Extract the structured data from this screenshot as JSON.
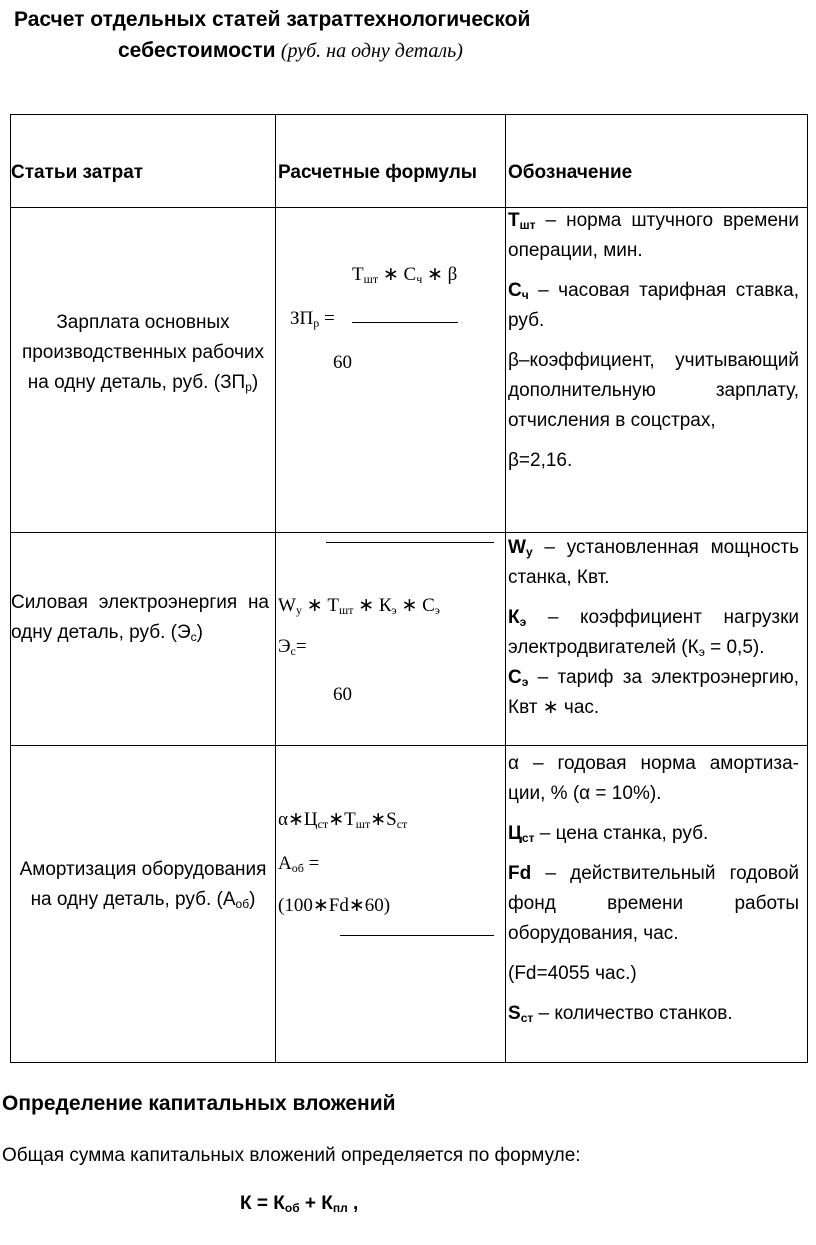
{
  "title": {
    "line1": "Расчет отдельных статей затраттехнологической",
    "line2_bold": "себестоимости",
    "line2_italic": "(руб. на одну деталь)"
  },
  "table": {
    "headers": [
      "Статьи затрат",
      "Расчетные формулы",
      "Обозначение"
    ],
    "rows": [
      {
        "item": [
          {
            "t": "Зарплата основных производственных рабочих на одну деталь, руб. (ЗП"
          },
          {
            "t": "р",
            "s": "sub"
          },
          {
            "t": ")"
          }
        ],
        "formula": {
          "numerator": [
            {
              "t": "Т"
            },
            {
              "t": "шт",
              "s": "sub"
            },
            {
              "t": " ∗ С"
            },
            {
              "t": "ч",
              "s": "sub"
            },
            {
              "t": " ∗ β"
            }
          ],
          "lhs": [
            {
              "t": "ЗП"
            },
            {
              "t": "р",
              "s": "sub"
            },
            {
              "t": " = "
            }
          ],
          "denominator": "60"
        },
        "desc": [
          [
            {
              "t": "Т",
              "s": "b"
            },
            {
              "t": "шт",
              "s": "bsub"
            },
            {
              "t": " – норма штучного времени операции, мин."
            }
          ],
          [
            {
              "t": "С",
              "s": "b"
            },
            {
              "t": "ч",
              "s": "bsub"
            },
            {
              "t": " – часовая тарифная ставка, руб."
            }
          ],
          [
            {
              "t": "β–коэффициент, учитывающий дополнительную зарплату, отчисления в соцстрах,"
            }
          ],
          [
            {
              "t": "β=2,16."
            }
          ]
        ]
      },
      {
        "item": [
          {
            "t": "Силовая электроэнергия на одну деталь, руб. (Э"
          },
          {
            "t": "с",
            "s": "sub"
          },
          {
            "t": ")"
          }
        ],
        "formula": {
          "numerator": [
            {
              "t": "W"
            },
            {
              "t": "у",
              "s": "sub"
            },
            {
              "t": " ∗ Т"
            },
            {
              "t": "шт",
              "s": "sub"
            },
            {
              "t": " ∗ К"
            },
            {
              "t": "э",
              "s": "sub"
            },
            {
              "t": " ∗ С"
            },
            {
              "t": "э",
              "s": "sub"
            }
          ],
          "lhs": [
            {
              "t": "Э"
            },
            {
              "t": "с",
              "s": "sub"
            },
            {
              "t": "="
            }
          ],
          "denominator": "60"
        },
        "desc": [
          [
            {
              "t": "W",
              "s": "b"
            },
            {
              "t": "у",
              "s": "bsub"
            },
            {
              "t": " – установленная мощность станка, Квт."
            }
          ],
          [
            {
              "t": "К",
              "s": "b"
            },
            {
              "t": "э",
              "s": "bsub"
            },
            {
              "t": " – коэффициент нагрузки электродвигателей (К"
            },
            {
              "t": "э",
              "s": "sub"
            },
            {
              "t": " = 0,5)."
            }
          ],
          [
            {
              "t": "С",
              "s": "b"
            },
            {
              "t": "э",
              "s": "bsub"
            },
            {
              "t": " – тариф за электроэнергию, Квт ∗ час."
            }
          ]
        ]
      },
      {
        "item": [
          {
            "t": "Амортизация оборудования на одну деталь, руб. (А"
          },
          {
            "t": "об",
            "s": "sub"
          },
          {
            "t": ")"
          }
        ],
        "formula": {
          "numerator": [
            {
              "t": "α∗Ц"
            },
            {
              "t": "ст",
              "s": "sub"
            },
            {
              "t": "∗Т"
            },
            {
              "t": "шт",
              "s": "sub"
            },
            {
              "t": "∗S"
            },
            {
              "t": "ст",
              "s": "sub"
            }
          ],
          "lhs": [
            {
              "t": "А"
            },
            {
              "t": "об",
              "s": "sub"
            },
            {
              "t": " ="
            }
          ],
          "denominator": "(100∗Fd∗60)"
        },
        "desc": [
          [
            {
              "t": "α – годовая норма амортиза-ции, % (α = 10%)."
            }
          ],
          [
            {
              "t": "Ц",
              "s": "b"
            },
            {
              "t": "ст",
              "s": "bsub"
            },
            {
              "t": " – цена станка, руб."
            }
          ],
          [
            {
              "t": "Fd",
              "s": "b"
            },
            {
              "t": " – действительный годовой фонд времени работы оборудования, час."
            }
          ],
          [
            {
              "t": "(Fd=4055 час.)"
            }
          ],
          [
            {
              "t": "S",
              "s": "b"
            },
            {
              "t": "ст",
              "s": "bsub"
            },
            {
              "t": " – количество станков."
            }
          ]
        ]
      }
    ]
  },
  "section": {
    "heading": "Определение капитальных вложений",
    "paragraph": "Общая сумма капитальных вложений определяется по формуле:",
    "formula": [
      {
        "t": "К = К"
      },
      {
        "t": "об",
        "s": "sub"
      },
      {
        "t": " + К"
      },
      {
        "t": "пл",
        "s": "sub"
      },
      {
        "t": " ,"
      }
    ]
  }
}
